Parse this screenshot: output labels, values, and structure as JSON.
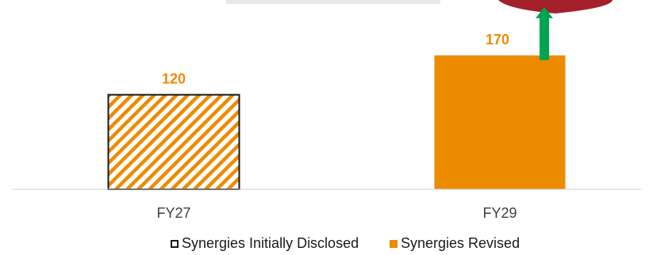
{
  "chart_data": {
    "type": "bar",
    "title": "",
    "xlabel": "",
    "ylabel": "",
    "categories": [
      "FY27",
      "FY29"
    ],
    "series": [
      {
        "name": "Synergies Initially Disclosed",
        "values": [
          120,
          null
        ],
        "style": "hatched",
        "color": "#ed8b00",
        "edge_color": "#1a1a1a"
      },
      {
        "name": "Synergies Revised",
        "values": [
          null,
          170
        ],
        "style": "solid",
        "color": "#ed8b00"
      }
    ],
    "data_labels": [
      "120",
      "170"
    ],
    "data_label_color": "#ed8b00",
    "ylim": [
      0,
      200
    ],
    "grid": false,
    "legend_position": "bottom",
    "annotations": [
      {
        "type": "up-arrow",
        "category": "FY29",
        "color": "#00a64f"
      }
    ]
  },
  "legend": {
    "initial_label": "Synergies Initially Disclosed",
    "revised_label": "Synergies Revised"
  }
}
